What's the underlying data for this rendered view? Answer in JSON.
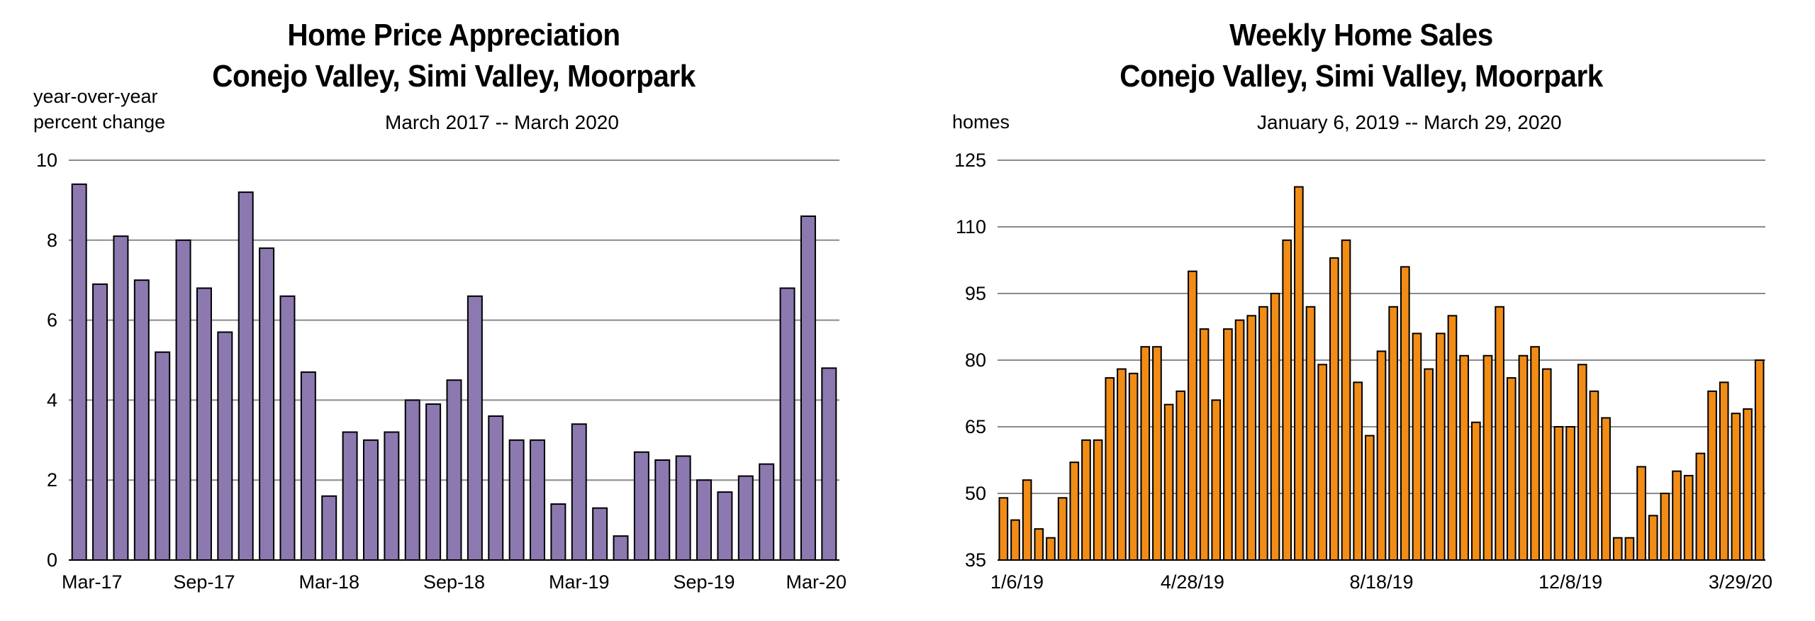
{
  "chart_data": [
    {
      "type": "bar",
      "title": "Home Price Appreciation",
      "subtitle": "Conejo Valley, Simi Valley, Moorpark",
      "date_range": "March 2017 -- March 2020",
      "ylabel": [
        "year-over-year",
        "percent change"
      ],
      "ylim": [
        0,
        10
      ],
      "yticks": [
        0,
        2,
        4,
        6,
        8,
        10
      ],
      "grid": true,
      "bar_color": "#8c79b0",
      "xtick_labels": [
        {
          "label": "Mar-17",
          "index": 0
        },
        {
          "label": "Sep-17",
          "index": 6
        },
        {
          "label": "Mar-18",
          "index": 12
        },
        {
          "label": "Sep-18",
          "index": 18
        },
        {
          "label": "Mar-19",
          "index": 24
        },
        {
          "label": "Sep-19",
          "index": 30
        },
        {
          "label": "Mar-20",
          "index": 36
        }
      ],
      "values": [
        9.4,
        6.9,
        8.1,
        7.0,
        5.2,
        8.0,
        6.8,
        5.7,
        9.2,
        7.8,
        6.6,
        4.7,
        1.6,
        3.2,
        3.0,
        3.2,
        4.0,
        3.9,
        4.5,
        6.6,
        3.6,
        3.0,
        3.0,
        1.4,
        3.4,
        1.3,
        0.6,
        2.7,
        2.5,
        2.6,
        2.0,
        1.7,
        2.1,
        2.4,
        6.8,
        8.6,
        4.8
      ]
    },
    {
      "type": "bar",
      "title": "Weekly Home Sales",
      "subtitle": "Conejo Valley, Simi Valley, Moorpark",
      "date_range": "January 6, 2019 -- March 29, 2020",
      "ylabel": [
        "homes"
      ],
      "ylim": [
        35,
        125
      ],
      "yticks": [
        35,
        50,
        65,
        80,
        95,
        110,
        125
      ],
      "grid": true,
      "bar_color": "#f18c16",
      "xtick_labels": [
        {
          "label": "1/6/19",
          "index": 0
        },
        {
          "label": "4/28/19",
          "index": 16
        },
        {
          "label": "8/18/19",
          "index": 32
        },
        {
          "label": "12/8/19",
          "index": 48
        },
        {
          "label": "3/29/20",
          "index": 64
        }
      ],
      "values": [
        49,
        44,
        53,
        42,
        40,
        49,
        57,
        62,
        62,
        76,
        78,
        77,
        83,
        83,
        70,
        73,
        100,
        87,
        71,
        87,
        89,
        90,
        92,
        95,
        107,
        119,
        92,
        79,
        103,
        107,
        75,
        63,
        82,
        92,
        101,
        86,
        78,
        86,
        90,
        81,
        66,
        81,
        92,
        76,
        81,
        83,
        78,
        65,
        65,
        79,
        73,
        67,
        40,
        40,
        56,
        45,
        50,
        55,
        54,
        59,
        73,
        75,
        68,
        69,
        80
      ]
    }
  ]
}
